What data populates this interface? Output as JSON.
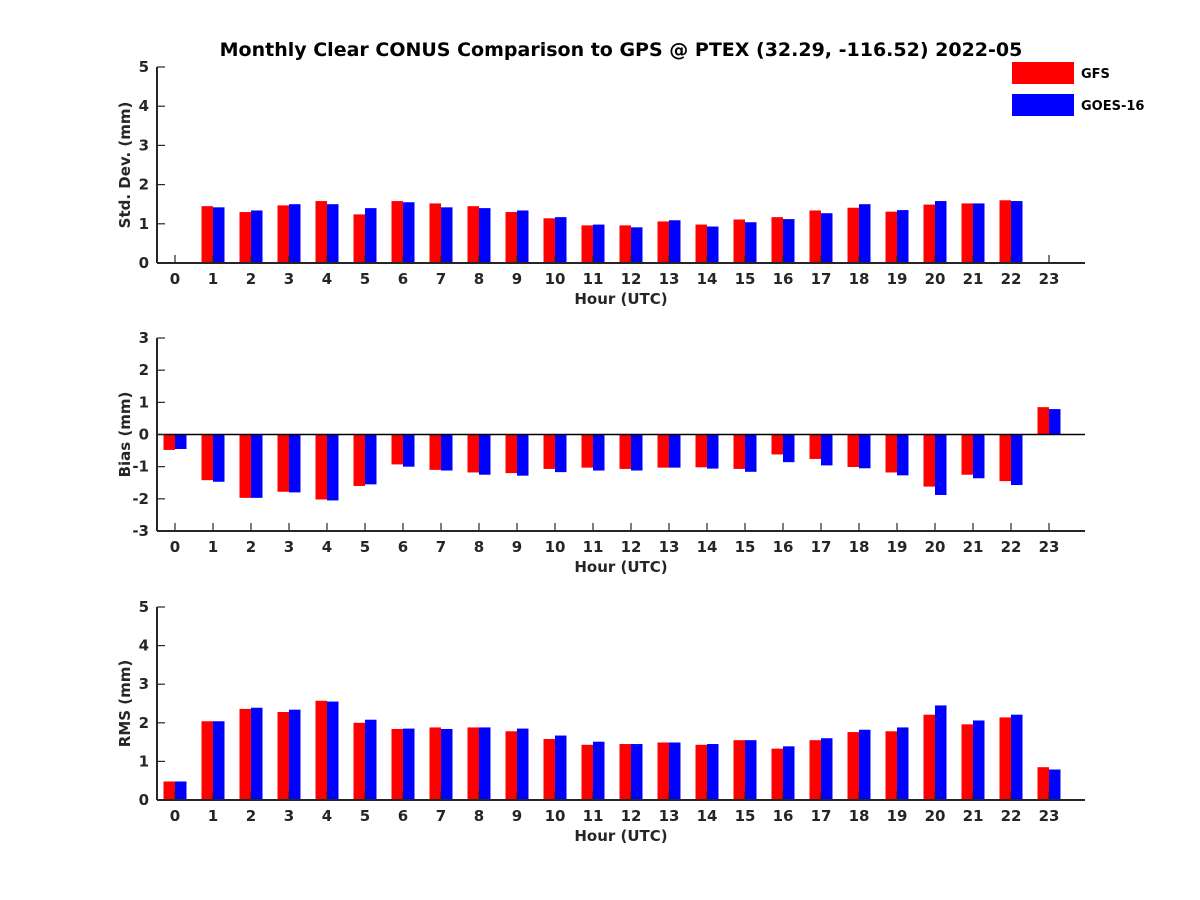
{
  "title": "Monthly Clear CONUS Comparison to GPS @ PTEX (32.29, -116.52) 2022-05",
  "legend": {
    "placement": "top-right",
    "entries": [
      {
        "label": "GFS",
        "color": "#ff0000"
      },
      {
        "label": "GOES-16",
        "color": "#0000ff"
      }
    ]
  },
  "chart_data": [
    {
      "type": "bar",
      "xlabel": "Hour (UTC)",
      "ylabel": "Std. Dev. (mm)",
      "ylim": [
        0,
        5
      ],
      "yticks": [
        0,
        1,
        2,
        3,
        4,
        5
      ],
      "categories": [
        "0",
        "1",
        "2",
        "3",
        "4",
        "5",
        "6",
        "7",
        "8",
        "9",
        "10",
        "11",
        "12",
        "13",
        "14",
        "15",
        "16",
        "17",
        "18",
        "19",
        "20",
        "21",
        "22",
        "23"
      ],
      "series": [
        {
          "name": "GFS",
          "color": "#ff0000",
          "values": [
            0,
            1.45,
            1.3,
            1.47,
            1.58,
            1.24,
            1.58,
            1.52,
            1.45,
            1.3,
            1.14,
            0.96,
            0.96,
            1.06,
            0.98,
            1.11,
            1.17,
            1.34,
            1.41,
            1.31,
            1.49,
            1.52,
            1.6,
            0
          ]
        },
        {
          "name": "GOES-16",
          "color": "#0000ff",
          "values": [
            0,
            1.42,
            1.34,
            1.5,
            1.5,
            1.4,
            1.55,
            1.42,
            1.4,
            1.34,
            1.17,
            0.98,
            0.91,
            1.09,
            0.93,
            1.04,
            1.12,
            1.27,
            1.5,
            1.35,
            1.58,
            1.52,
            1.58,
            0
          ]
        }
      ]
    },
    {
      "type": "bar",
      "xlabel": "Hour (UTC)",
      "ylabel": "Bias (mm)",
      "ylim": [
        -3,
        3
      ],
      "yticks": [
        -3,
        -2,
        -1,
        0,
        1,
        2,
        3
      ],
      "categories": [
        "0",
        "1",
        "2",
        "3",
        "4",
        "5",
        "6",
        "7",
        "8",
        "9",
        "10",
        "11",
        "12",
        "13",
        "14",
        "15",
        "16",
        "17",
        "18",
        "19",
        "20",
        "21",
        "22",
        "23"
      ],
      "series": [
        {
          "name": "GFS",
          "color": "#ff0000",
          "values": [
            -0.48,
            -1.42,
            -1.97,
            -1.78,
            -2.02,
            -1.6,
            -0.93,
            -1.1,
            -1.18,
            -1.2,
            -1.07,
            -1.03,
            -1.07,
            -1.03,
            -1.02,
            -1.07,
            -0.62,
            -0.76,
            -1.01,
            -1.18,
            -1.62,
            -1.25,
            -1.45,
            0.85
          ]
        },
        {
          "name": "GOES-16",
          "color": "#0000ff",
          "values": [
            -0.45,
            -1.47,
            -1.97,
            -1.8,
            -2.05,
            -1.55,
            -1.0,
            -1.12,
            -1.25,
            -1.28,
            -1.17,
            -1.12,
            -1.12,
            -1.03,
            -1.06,
            -1.16,
            -0.86,
            -0.96,
            -1.05,
            -1.27,
            -1.88,
            -1.36,
            -1.57,
            0.79
          ]
        }
      ]
    },
    {
      "type": "bar",
      "xlabel": "Hour (UTC)",
      "ylabel": "RMS (mm)",
      "ylim": [
        0,
        5
      ],
      "yticks": [
        0,
        1,
        2,
        3,
        4,
        5
      ],
      "categories": [
        "0",
        "1",
        "2",
        "3",
        "4",
        "5",
        "6",
        "7",
        "8",
        "9",
        "10",
        "11",
        "12",
        "13",
        "14",
        "15",
        "16",
        "17",
        "18",
        "19",
        "20",
        "21",
        "22",
        "23"
      ],
      "series": [
        {
          "name": "GFS",
          "color": "#ff0000",
          "values": [
            0.48,
            2.04,
            2.36,
            2.28,
            2.57,
            2.0,
            1.84,
            1.88,
            1.88,
            1.78,
            1.58,
            1.43,
            1.45,
            1.49,
            1.43,
            1.55,
            1.33,
            1.55,
            1.76,
            1.78,
            2.21,
            1.96,
            2.14,
            0.85
          ]
        },
        {
          "name": "GOES-16",
          "color": "#0000ff",
          "values": [
            0.48,
            2.04,
            2.39,
            2.34,
            2.55,
            2.08,
            1.85,
            1.84,
            1.88,
            1.85,
            1.67,
            1.51,
            1.45,
            1.49,
            1.45,
            1.55,
            1.39,
            1.6,
            1.82,
            1.88,
            2.45,
            2.06,
            2.21,
            0.79
          ]
        }
      ]
    }
  ]
}
